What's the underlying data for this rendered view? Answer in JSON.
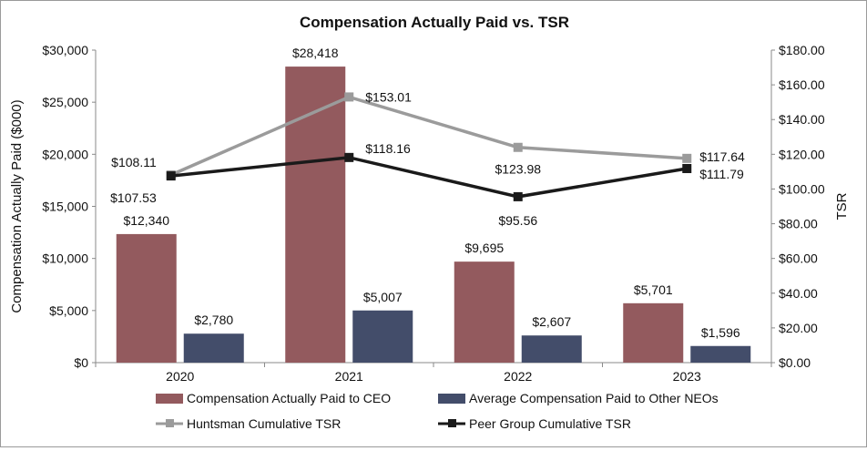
{
  "chart_data": {
    "type": "bar",
    "title": "Compensation Actually Paid vs. TSR",
    "categories": [
      "2020",
      "2021",
      "2022",
      "2023"
    ],
    "ylabel": "Compensation Actually Paid ($000)",
    "ylim": [
      0,
      30000
    ],
    "yticks": [
      {
        "value": 0,
        "label": "$0"
      },
      {
        "value": 5000,
        "label": "$5,000"
      },
      {
        "value": 10000,
        "label": "$10,000"
      },
      {
        "value": 15000,
        "label": "$15,000"
      },
      {
        "value": 20000,
        "label": "$20,000"
      },
      {
        "value": 25000,
        "label": "$25,000"
      },
      {
        "value": 30000,
        "label": "$30,000"
      }
    ],
    "y2label": "TSR",
    "y2lim": [
      0,
      180
    ],
    "y2ticks": [
      {
        "value": 0,
        "label": "$0.00"
      },
      {
        "value": 20,
        "label": "$20.00"
      },
      {
        "value": 40,
        "label": "$40.00"
      },
      {
        "value": 60,
        "label": "$60.00"
      },
      {
        "value": 80,
        "label": "$80.00"
      },
      {
        "value": 100,
        "label": "$100.00"
      },
      {
        "value": 120,
        "label": "$120.00"
      },
      {
        "value": 140,
        "label": "$140.00"
      },
      {
        "value": 160,
        "label": "$160.00"
      },
      {
        "value": 180,
        "label": "$180.00"
      }
    ],
    "bar_series": [
      {
        "name": "Compensation Actually Paid to CEO",
        "color": "#935a5e",
        "values": [
          12340,
          28418,
          9695,
          5701
        ],
        "labels": [
          "$12,340",
          "$28,418",
          "$9,695",
          "$5,701"
        ]
      },
      {
        "name": "Average Compensation Paid to Other NEOs",
        "color": "#434d6a",
        "values": [
          2780,
          5007,
          2607,
          1596
        ],
        "labels": [
          "$2,780",
          "$5,007",
          "$2,607",
          "$1,596"
        ]
      }
    ],
    "line_series": [
      {
        "name": "Huntsman Cumulative TSR",
        "color": "#9b9b9b",
        "values": [
          108.11,
          153.01,
          123.98,
          117.64
        ],
        "labels": [
          "$108.11",
          "$153.01",
          "$123.98",
          "$117.64"
        ]
      },
      {
        "name": "Peer Group Cumulative TSR",
        "color": "#1a1a1a",
        "values": [
          107.53,
          118.16,
          95.56,
          111.79
        ],
        "labels": [
          "$107.53",
          "$118.16",
          "$95.56",
          "$111.79"
        ]
      }
    ],
    "legend_position": "bottom",
    "grid": false
  }
}
